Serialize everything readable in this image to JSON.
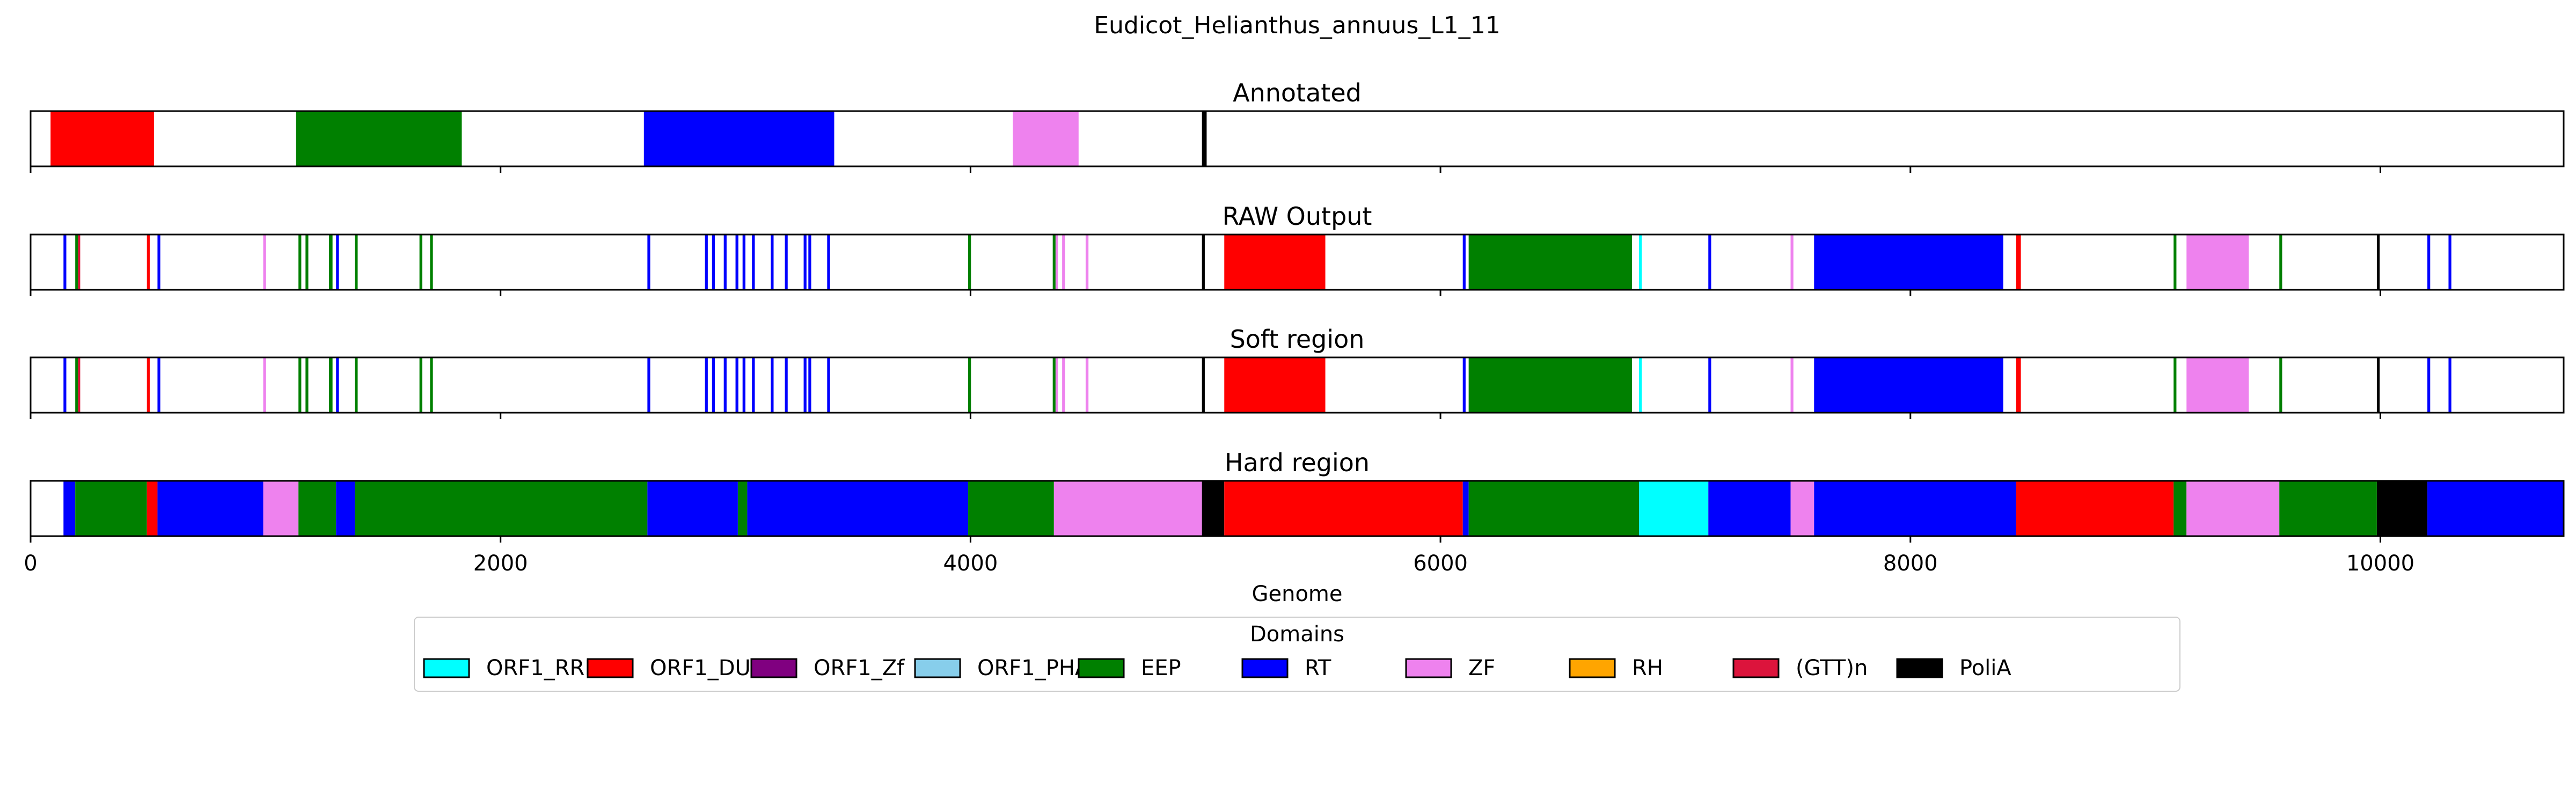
{
  "title": "Eudicot_Helianthus_annuus_L1_11",
  "colors": {
    "ORF1_RRM": "#00ffff",
    "ORF1_DUF": "#ff0000",
    "ORF1_Zf": "#800080",
    "ORF1_PHA": "#87ceeb",
    "EEP": "#008000",
    "RT": "#0000ff",
    "ZF": "#ee82ee",
    "RH": "#ffa500",
    "(GTT)n": "#dc143c",
    "PoliA": "#000000"
  },
  "chart_data": {
    "type": "genome-track",
    "xlabel": "Genome",
    "xlim": [
      0,
      10780
    ],
    "xticks": [
      0,
      2000,
      4000,
      6000,
      8000,
      10000
    ],
    "xtick_labels": [
      "0",
      "2000",
      "4000",
      "6000",
      "8000",
      "10000"
    ],
    "grid": "dashed vertical lines on Hard region panel only",
    "legend": {
      "title": "Domains",
      "placement": "below",
      "items": [
        "ORF1_RRM",
        "ORF1_DUF",
        "ORF1_Zf",
        "ORF1_PHA",
        "EEP",
        "RT",
        "ZF",
        "RH",
        "(GTT)n",
        "PoliA"
      ]
    },
    "panels": [
      {
        "title": "Annotated",
        "segments": [
          {
            "domain": "ORF1_DUF",
            "start": 85,
            "end": 525
          },
          {
            "domain": "EEP",
            "start": 1130,
            "end": 1835
          },
          {
            "domain": "RT",
            "start": 2610,
            "end": 3420
          },
          {
            "domain": "ZF",
            "start": 4180,
            "end": 4460
          },
          {
            "domain": "PoliA",
            "start": 4985,
            "end": 5005
          }
        ]
      },
      {
        "title": "RAW Output",
        "segments": [
          {
            "domain": "RT",
            "start": 140,
            "end": 152
          },
          {
            "domain": "EEP",
            "start": 190,
            "end": 202
          },
          {
            "domain": "(GTT)n",
            "start": 202,
            "end": 210
          },
          {
            "domain": "ORF1_DUF",
            "start": 495,
            "end": 507
          },
          {
            "domain": "RT",
            "start": 540,
            "end": 552
          },
          {
            "domain": "ZF",
            "start": 990,
            "end": 1002
          },
          {
            "domain": "EEP",
            "start": 1140,
            "end": 1152
          },
          {
            "domain": "EEP",
            "start": 1170,
            "end": 1182
          },
          {
            "domain": "EEP",
            "start": 1270,
            "end": 1285
          },
          {
            "domain": "RT",
            "start": 1300,
            "end": 1312
          },
          {
            "domain": "EEP",
            "start": 1380,
            "end": 1392
          },
          {
            "domain": "EEP",
            "start": 1655,
            "end": 1667
          },
          {
            "domain": "EEP",
            "start": 1700,
            "end": 1712
          },
          {
            "domain": "RT",
            "start": 2625,
            "end": 2637
          },
          {
            "domain": "RT",
            "start": 2870,
            "end": 2882
          },
          {
            "domain": "RT",
            "start": 2900,
            "end": 2912
          },
          {
            "domain": "RT",
            "start": 2950,
            "end": 2962
          },
          {
            "domain": "RT",
            "start": 3000,
            "end": 3012
          },
          {
            "domain": "RT",
            "start": 3030,
            "end": 3042
          },
          {
            "domain": "RT",
            "start": 3070,
            "end": 3082
          },
          {
            "domain": "RT",
            "start": 3150,
            "end": 3162
          },
          {
            "domain": "RT",
            "start": 3210,
            "end": 3222
          },
          {
            "domain": "RT",
            "start": 3290,
            "end": 3302
          },
          {
            "domain": "RT",
            "start": 3310,
            "end": 3322
          },
          {
            "domain": "RT",
            "start": 3390,
            "end": 3402
          },
          {
            "domain": "EEP",
            "start": 3990,
            "end": 4002
          },
          {
            "domain": "EEP",
            "start": 4350,
            "end": 4362
          },
          {
            "domain": "ZF",
            "start": 4362,
            "end": 4372
          },
          {
            "domain": "ZF",
            "start": 4390,
            "end": 4402
          },
          {
            "domain": "ZF",
            "start": 4490,
            "end": 4502
          },
          {
            "domain": "PoliA",
            "start": 4985,
            "end": 4997
          },
          {
            "domain": "ORF1_DUF",
            "start": 5080,
            "end": 5510
          },
          {
            "domain": "RT",
            "start": 6095,
            "end": 6107
          },
          {
            "domain": "EEP",
            "start": 6120,
            "end": 6815
          },
          {
            "domain": "ORF1_RRM",
            "start": 6845,
            "end": 6857
          },
          {
            "domain": "RT",
            "start": 7140,
            "end": 7152
          },
          {
            "domain": "ZF",
            "start": 7490,
            "end": 7502
          },
          {
            "domain": "RT",
            "start": 7590,
            "end": 8395
          },
          {
            "domain": "ORF1_DUF",
            "start": 8450,
            "end": 8470
          },
          {
            "domain": "EEP",
            "start": 9120,
            "end": 9132
          },
          {
            "domain": "ZF",
            "start": 9175,
            "end": 9440
          },
          {
            "domain": "EEP",
            "start": 9570,
            "end": 9582
          },
          {
            "domain": "PoliA",
            "start": 9985,
            "end": 9997
          },
          {
            "domain": "RT",
            "start": 10200,
            "end": 10212
          },
          {
            "domain": "RT",
            "start": 10290,
            "end": 10302
          }
        ]
      },
      {
        "title": "Soft region",
        "segments": [
          {
            "domain": "RT",
            "start": 140,
            "end": 152
          },
          {
            "domain": "EEP",
            "start": 190,
            "end": 202
          },
          {
            "domain": "(GTT)n",
            "start": 202,
            "end": 210
          },
          {
            "domain": "ORF1_DUF",
            "start": 495,
            "end": 507
          },
          {
            "domain": "RT",
            "start": 540,
            "end": 552
          },
          {
            "domain": "ZF",
            "start": 990,
            "end": 1002
          },
          {
            "domain": "EEP",
            "start": 1140,
            "end": 1152
          },
          {
            "domain": "EEP",
            "start": 1170,
            "end": 1182
          },
          {
            "domain": "EEP",
            "start": 1270,
            "end": 1285
          },
          {
            "domain": "RT",
            "start": 1300,
            "end": 1312
          },
          {
            "domain": "EEP",
            "start": 1380,
            "end": 1392
          },
          {
            "domain": "EEP",
            "start": 1655,
            "end": 1667
          },
          {
            "domain": "EEP",
            "start": 1700,
            "end": 1712
          },
          {
            "domain": "RT",
            "start": 2625,
            "end": 2637
          },
          {
            "domain": "RT",
            "start": 2870,
            "end": 2882
          },
          {
            "domain": "RT",
            "start": 2900,
            "end": 2912
          },
          {
            "domain": "RT",
            "start": 2950,
            "end": 2962
          },
          {
            "domain": "RT",
            "start": 3000,
            "end": 3012
          },
          {
            "domain": "RT",
            "start": 3030,
            "end": 3042
          },
          {
            "domain": "RT",
            "start": 3070,
            "end": 3082
          },
          {
            "domain": "RT",
            "start": 3150,
            "end": 3162
          },
          {
            "domain": "RT",
            "start": 3210,
            "end": 3222
          },
          {
            "domain": "RT",
            "start": 3290,
            "end": 3302
          },
          {
            "domain": "RT",
            "start": 3310,
            "end": 3322
          },
          {
            "domain": "RT",
            "start": 3390,
            "end": 3402
          },
          {
            "domain": "EEP",
            "start": 3990,
            "end": 4002
          },
          {
            "domain": "EEP",
            "start": 4350,
            "end": 4362
          },
          {
            "domain": "ZF",
            "start": 4362,
            "end": 4372
          },
          {
            "domain": "ZF",
            "start": 4390,
            "end": 4402
          },
          {
            "domain": "ZF",
            "start": 4490,
            "end": 4502
          },
          {
            "domain": "PoliA",
            "start": 4985,
            "end": 4997
          },
          {
            "domain": "ORF1_DUF",
            "start": 5080,
            "end": 5510
          },
          {
            "domain": "RT",
            "start": 6095,
            "end": 6107
          },
          {
            "domain": "EEP",
            "start": 6120,
            "end": 6815
          },
          {
            "domain": "ORF1_RRM",
            "start": 6845,
            "end": 6857
          },
          {
            "domain": "RT",
            "start": 7140,
            "end": 7152
          },
          {
            "domain": "ZF",
            "start": 7490,
            "end": 7502
          },
          {
            "domain": "RT",
            "start": 7590,
            "end": 8395
          },
          {
            "domain": "ORF1_DUF",
            "start": 8450,
            "end": 8470
          },
          {
            "domain": "EEP",
            "start": 9120,
            "end": 9132
          },
          {
            "domain": "ZF",
            "start": 9175,
            "end": 9440
          },
          {
            "domain": "EEP",
            "start": 9570,
            "end": 9582
          },
          {
            "domain": "PoliA",
            "start": 9985,
            "end": 9997
          },
          {
            "domain": "RT",
            "start": 10200,
            "end": 10212
          },
          {
            "domain": "RT",
            "start": 10290,
            "end": 10302
          }
        ]
      },
      {
        "title": "Hard region",
        "segments": [
          {
            "domain": "RT",
            "start": 140,
            "end": 190
          },
          {
            "domain": "EEP",
            "start": 190,
            "end": 495
          },
          {
            "domain": "ORF1_DUF",
            "start": 495,
            "end": 540
          },
          {
            "domain": "RT",
            "start": 540,
            "end": 990
          },
          {
            "domain": "ZF",
            "start": 990,
            "end": 1140
          },
          {
            "domain": "EEP",
            "start": 1140,
            "end": 1300
          },
          {
            "domain": "RT",
            "start": 1300,
            "end": 1380
          },
          {
            "domain": "EEP",
            "start": 1380,
            "end": 2625
          },
          {
            "domain": "RT",
            "start": 2625,
            "end": 3010
          },
          {
            "domain": "EEP",
            "start": 3010,
            "end": 3050
          },
          {
            "domain": "RT",
            "start": 3050,
            "end": 3990
          },
          {
            "domain": "EEP",
            "start": 3990,
            "end": 4355
          },
          {
            "domain": "ZF",
            "start": 4355,
            "end": 4985
          },
          {
            "domain": "PoliA",
            "start": 4985,
            "end": 5080
          },
          {
            "domain": "ORF1_DUF",
            "start": 5080,
            "end": 6095
          },
          {
            "domain": "RT",
            "start": 6095,
            "end": 6120
          },
          {
            "domain": "EEP",
            "start": 6120,
            "end": 6845
          },
          {
            "domain": "ORF1_RRM",
            "start": 6845,
            "end": 7140
          },
          {
            "domain": "RT",
            "start": 7140,
            "end": 7490
          },
          {
            "domain": "ZF",
            "start": 7490,
            "end": 7590
          },
          {
            "domain": "RT",
            "start": 7590,
            "end": 8450
          },
          {
            "domain": "ORF1_DUF",
            "start": 8450,
            "end": 9120
          },
          {
            "domain": "EEP",
            "start": 9120,
            "end": 9175
          },
          {
            "domain": "ZF",
            "start": 9175,
            "end": 9570
          },
          {
            "domain": "EEP",
            "start": 9570,
            "end": 9985
          },
          {
            "domain": "PoliA",
            "start": 9985,
            "end": 10200
          },
          {
            "domain": "RT",
            "start": 10200,
            "end": 10780
          }
        ]
      }
    ]
  }
}
